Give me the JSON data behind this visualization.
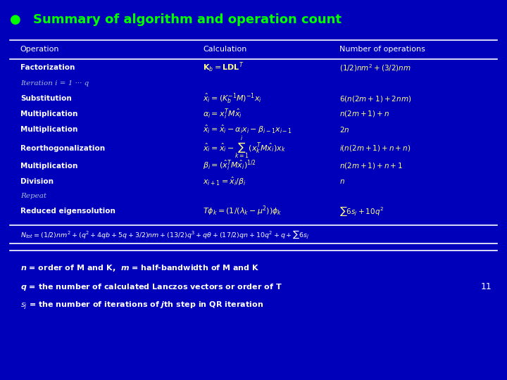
{
  "bg_color": "#0000BB",
  "title_text": "Summary of algorithm and operation count",
  "title_bullet_color": "#00FF00",
  "title_color": "#00FF00",
  "header_color": "#FFFFFF",
  "body_color": "#FFFFFF",
  "italic_color": "#AABBDD",
  "formula_color": "#FFFF88",
  "count_color": "#FFFF88",
  "line_color": "#FFFFFF",
  "footnote_color": "#FFFFFF",
  "page_num_color": "#FFFFFF",
  "headers": [
    "Operation",
    "Calculation",
    "Number of operations"
  ],
  "col1": 0.04,
  "col2": 0.4,
  "col3": 0.67,
  "page_num": "11"
}
